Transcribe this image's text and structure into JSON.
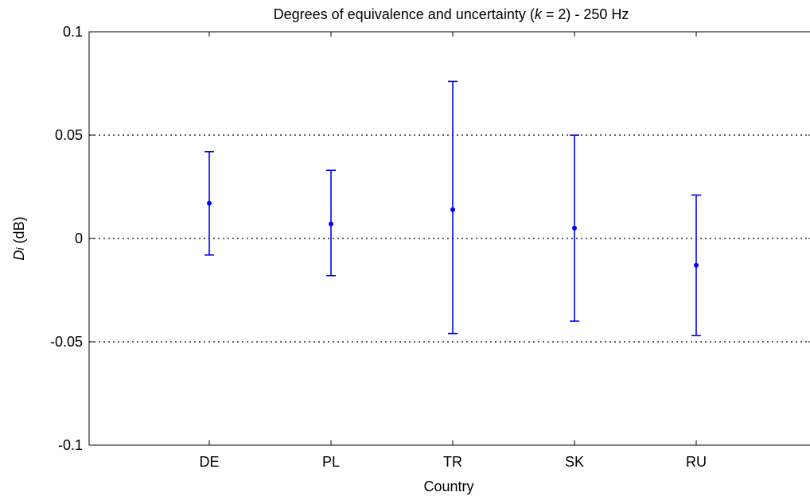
{
  "chart_data": {
    "type": "scatter",
    "title_prefix": "Degrees of equivalence and uncertainty (",
    "title_k": "k",
    "title_suffix": " = 2) - 250 Hz",
    "xlabel": "Country",
    "ylabel_var": "D",
    "ylabel_sub": "i",
    "ylabel_unit": " (dB)",
    "categories": [
      "DE",
      "PL",
      "TR",
      "SK",
      "RU"
    ],
    "series": [
      {
        "values": [
          0.017,
          0.007,
          0.014,
          0.005,
          -0.013
        ],
        "upper": [
          0.042,
          0.033,
          0.076,
          0.05,
          0.021
        ],
        "lower": [
          -0.008,
          -0.018,
          -0.046,
          -0.04,
          -0.047
        ]
      }
    ],
    "ylim": [
      -0.1,
      0.1
    ],
    "yticks": [
      -0.1,
      -0.05,
      0,
      0.05,
      0.1
    ],
    "ytick_labels": [
      "-0.1",
      "-0.05",
      "0",
      "0.05",
      "0.1"
    ],
    "grid": "y-dotted",
    "color": "#0000ff"
  }
}
